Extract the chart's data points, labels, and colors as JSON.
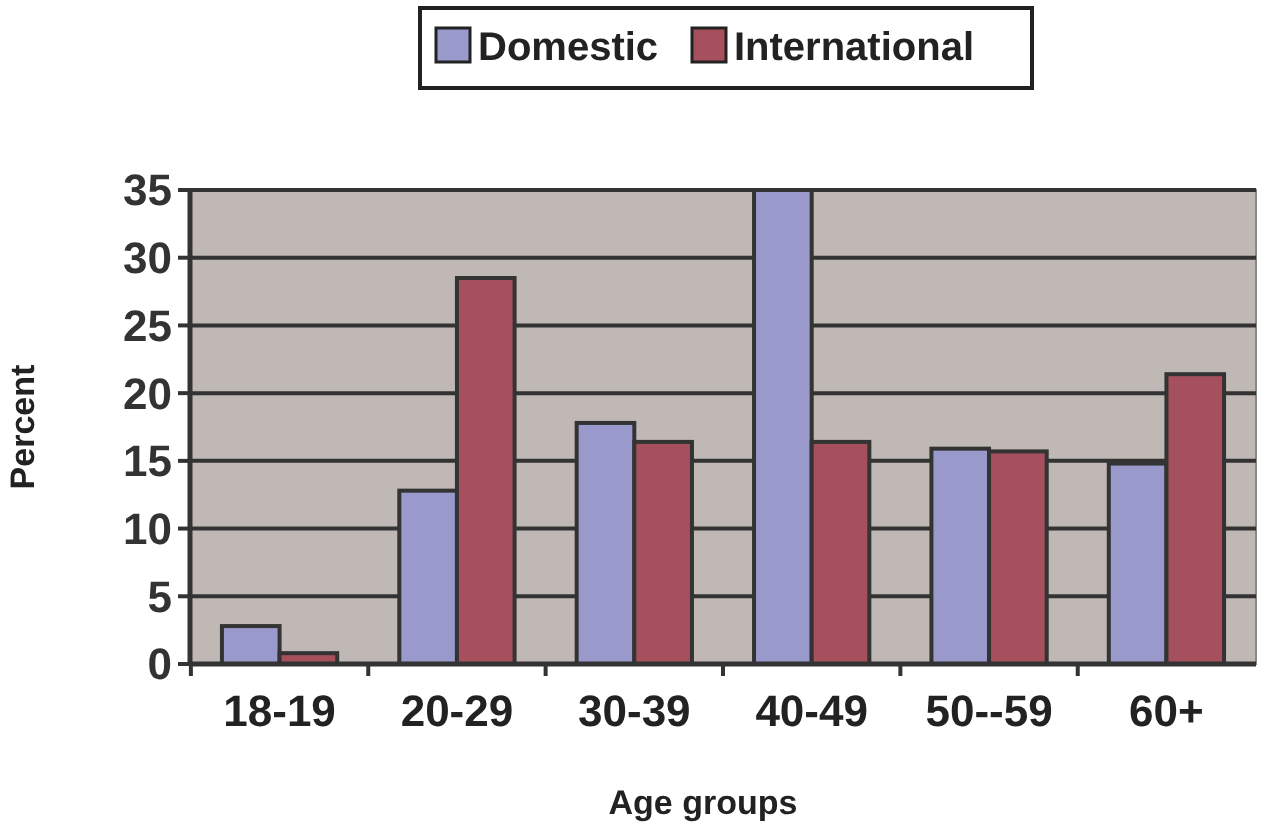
{
  "chart_data": {
    "type": "bar",
    "xlabel": "Age groups",
    "ylabel": "Percent",
    "categories": [
      "18-19",
      "20-29",
      "30-39",
      "40-49",
      "50--59",
      "60+"
    ],
    "series": [
      {
        "name": "Domestic",
        "color": "#9999cc",
        "values": [
          2.8,
          12.8,
          17.8,
          35,
          15.9,
          14.8
        ]
      },
      {
        "name": "International",
        "color": "#a6505e",
        "values": [
          0.8,
          28.5,
          16.4,
          16.4,
          15.7,
          21.4
        ]
      }
    ],
    "ylim": [
      0,
      35
    ],
    "yticks": [
      0,
      5,
      10,
      15,
      20,
      25,
      30,
      35
    ],
    "grid": "y",
    "legend": "top"
  }
}
